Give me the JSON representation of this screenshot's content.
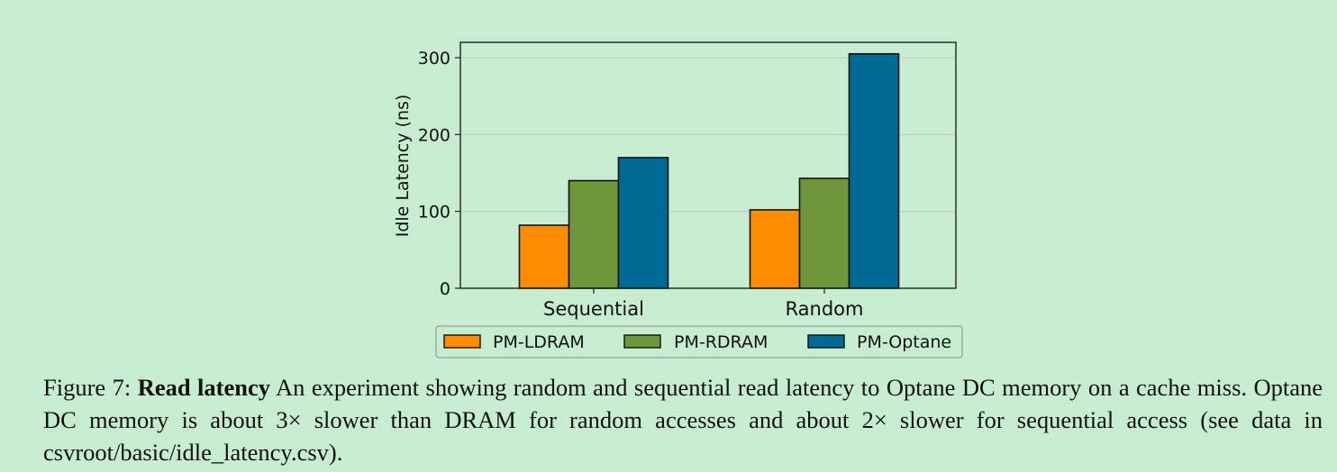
{
  "chart_data": {
    "type": "bar",
    "categories": [
      "Sequential",
      "Random"
    ],
    "series": [
      {
        "name": "PM-LDRAM",
        "values": [
          82,
          102
        ],
        "color": "#ff8c00"
      },
      {
        "name": "PM-RDRAM",
        "values": [
          140,
          143
        ],
        "color": "#6e973c"
      },
      {
        "name": "PM-Optane",
        "values": [
          170,
          305
        ],
        "color": "#006a96"
      }
    ],
    "title": "",
    "xlabel": "",
    "ylabel": "Idle Latency (ns)",
    "ylim": [
      0,
      320
    ],
    "yticks": [
      0,
      100,
      200,
      300
    ],
    "grid": true,
    "legend_position": "bottom"
  },
  "caption": {
    "label": "Figure 7:",
    "title": "Read latency",
    "text": "An experiment showing random and sequential read latency to Optane DC memory on a cache miss. Optane DC memory is about 3× slower than DRAM for random accesses and about 2× slower for sequential access (see data in csvroot/basic/idle_latency.csv)."
  }
}
